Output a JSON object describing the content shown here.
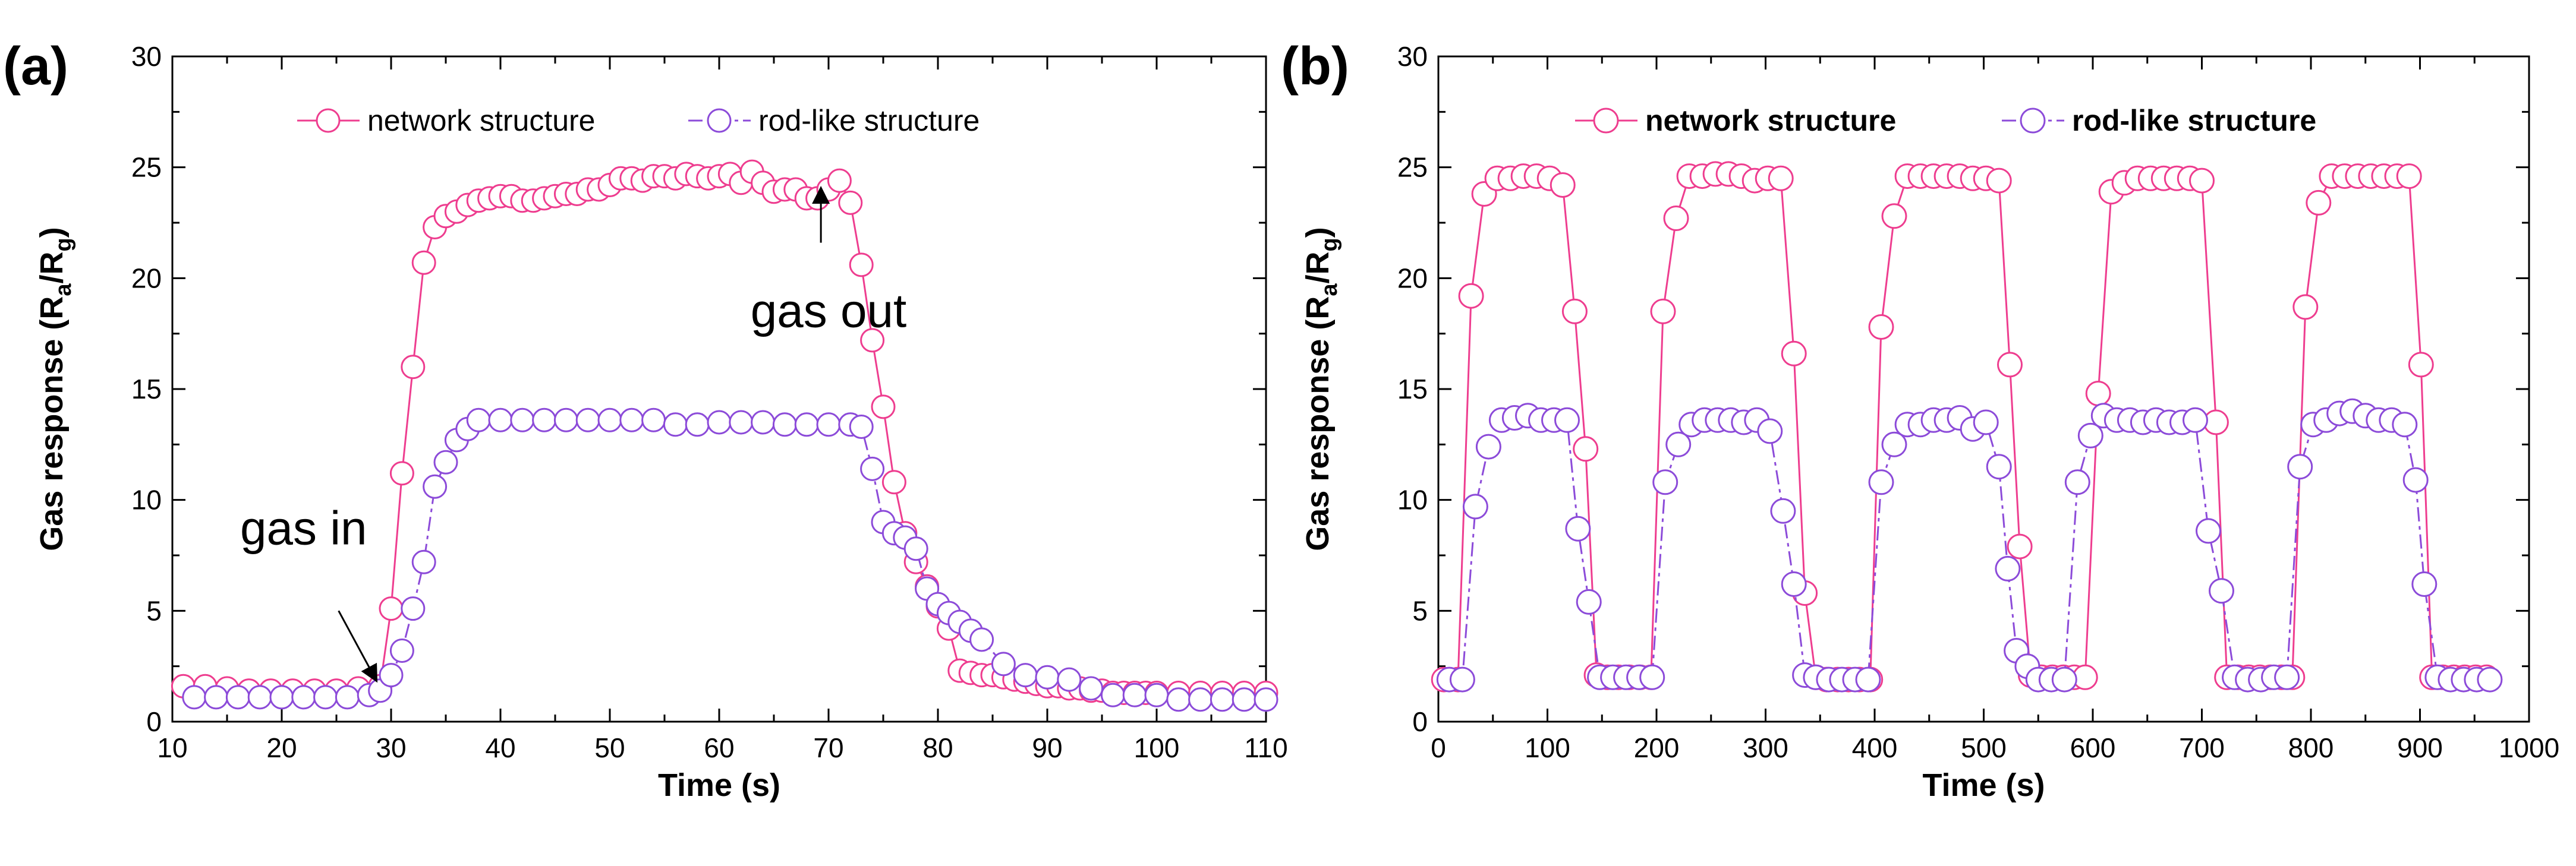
{
  "chart_data": [
    {
      "panel": "(a)",
      "type": "line",
      "title": "",
      "xlabel": "Time (s)",
      "ylabel_main": "Gas response (R",
      "ylabel_sub1": "a",
      "ylabel_mid": "/R",
      "ylabel_sub2": "g",
      "ylabel_end": ")",
      "xlim": [
        10,
        110
      ],
      "ylim": [
        0,
        30
      ],
      "xticks": [
        10,
        20,
        30,
        40,
        50,
        60,
        70,
        80,
        90,
        100,
        110
      ],
      "yticks": [
        0,
        5,
        10,
        15,
        20,
        25,
        30
      ],
      "legend_position": "top-center",
      "legend_bold": false,
      "series": [
        {
          "name": "network structure",
          "color": "#ee3d8f",
          "x": [
            11,
            13,
            15,
            17,
            19,
            21,
            23,
            25,
            27,
            29,
            30,
            31,
            32,
            33,
            34,
            35,
            36,
            37,
            38,
            39,
            40,
            41,
            42,
            43,
            44,
            45,
            46,
            47,
            48,
            49,
            50,
            51,
            52,
            53,
            54,
            55,
            56,
            57,
            58,
            59,
            60,
            61,
            62,
            63,
            64,
            65,
            66,
            67,
            68,
            69,
            70,
            71,
            72,
            73,
            74,
            75,
            76,
            77,
            78,
            79,
            80,
            81,
            82,
            83,
            84,
            85,
            86,
            87,
            88,
            89,
            90,
            91,
            92,
            93,
            94,
            95,
            96,
            97,
            98,
            99,
            100,
            102,
            104,
            106,
            108,
            110
          ],
          "y": [
            1.6,
            1.6,
            1.5,
            1.4,
            1.4,
            1.4,
            1.4,
            1.4,
            1.5,
            1.6,
            5.1,
            11.2,
            16.0,
            20.7,
            22.3,
            22.8,
            23.0,
            23.3,
            23.5,
            23.6,
            23.7,
            23.7,
            23.5,
            23.5,
            23.6,
            23.7,
            23.8,
            23.8,
            24.0,
            24.0,
            24.2,
            24.5,
            24.5,
            24.4,
            24.6,
            24.6,
            24.5,
            24.7,
            24.6,
            24.5,
            24.6,
            24.7,
            24.3,
            24.8,
            24.3,
            23.9,
            24.0,
            24.0,
            23.6,
            23.6,
            24.0,
            24.4,
            23.4,
            20.6,
            17.2,
            14.2,
            10.8,
            8.5,
            7.2,
            6.1,
            5.2,
            4.2,
            2.3,
            2.2,
            2.1,
            2.1,
            2.0,
            1.9,
            1.8,
            1.7,
            1.6,
            1.6,
            1.5,
            1.5,
            1.4,
            1.4,
            1.3,
            1.3,
            1.3,
            1.3,
            1.3,
            1.3,
            1.3,
            1.3,
            1.3,
            1.3
          ]
        },
        {
          "name": "rod-like structure",
          "color": "#8c4bd9",
          "x": [
            12,
            14,
            16,
            18,
            20,
            22,
            24,
            26,
            28,
            29,
            30,
            31,
            32,
            33,
            34,
            35,
            36,
            37,
            38,
            40,
            42,
            44,
            46,
            48,
            50,
            52,
            54,
            56,
            58,
            60,
            62,
            64,
            66,
            68,
            70,
            72,
            73,
            74,
            75,
            76,
            77,
            78,
            79,
            80,
            81,
            82,
            83,
            84,
            86,
            88,
            90,
            92,
            94,
            96,
            98,
            100,
            102,
            104,
            106,
            108,
            110
          ],
          "y": [
            1.1,
            1.1,
            1.1,
            1.1,
            1.1,
            1.1,
            1.1,
            1.1,
            1.2,
            1.4,
            2.1,
            3.2,
            5.1,
            7.2,
            10.6,
            11.7,
            12.7,
            13.2,
            13.6,
            13.6,
            13.6,
            13.6,
            13.6,
            13.6,
            13.6,
            13.6,
            13.6,
            13.4,
            13.4,
            13.5,
            13.5,
            13.5,
            13.4,
            13.4,
            13.4,
            13.4,
            13.3,
            11.4,
            9.0,
            8.5,
            8.3,
            7.8,
            6.0,
            5.3,
            4.9,
            4.5,
            4.1,
            3.7,
            2.6,
            2.1,
            2.0,
            1.9,
            1.5,
            1.2,
            1.2,
            1.2,
            1.0,
            1.0,
            1.0,
            1.0,
            1.0
          ]
        }
      ],
      "annotations": [
        {
          "text": "gas in",
          "x": 22,
          "y": 8.0,
          "arrow_from": [
            25.2,
            5.0
          ],
          "arrow_to": [
            28.6,
            1.9
          ]
        },
        {
          "text": "gas out",
          "x": 70,
          "y": 17.8,
          "arrow_from": [
            69.3,
            21.6
          ],
          "arrow_to": [
            69.3,
            24.0
          ]
        }
      ]
    },
    {
      "panel": "(b)",
      "type": "line",
      "title": "",
      "xlabel": "Time (s)",
      "ylabel_main": "Gas response (R",
      "ylabel_sub1": "a",
      "ylabel_mid": "/R",
      "ylabel_sub2": "g",
      "ylabel_end": ")",
      "xlim": [
        0,
        1000
      ],
      "ylim": [
        0,
        30
      ],
      "xticks": [
        0,
        100,
        200,
        300,
        400,
        500,
        600,
        700,
        800,
        900,
        1000
      ],
      "yticks": [
        0,
        5,
        10,
        15,
        20,
        25,
        30
      ],
      "legend_position": "top-center",
      "legend_bold": true,
      "series": [
        {
          "name": "network structure",
          "color": "#ee3d8f",
          "x": [
            5,
            18,
            30,
            42,
            54,
            66,
            78,
            90,
            102,
            114,
            125,
            135,
            145,
            155,
            165,
            175,
            185,
            195,
            206,
            218,
            230,
            242,
            254,
            266,
            278,
            290,
            302,
            314,
            326,
            336,
            346,
            356,
            366,
            376,
            386,
            396,
            406,
            418,
            430,
            442,
            454,
            466,
            478,
            490,
            502,
            514,
            524,
            533,
            543,
            553,
            563,
            573,
            583,
            593,
            605,
            617,
            629,
            641,
            653,
            665,
            677,
            689,
            700,
            713,
            723,
            733,
            743,
            753,
            763,
            773,
            783,
            795,
            807,
            819,
            831,
            843,
            855,
            867,
            879,
            890,
            901,
            911,
            921,
            931,
            941,
            951,
            961
          ],
          "y": [
            1.9,
            1.9,
            19.2,
            23.8,
            24.5,
            24.5,
            24.6,
            24.6,
            24.5,
            24.2,
            18.5,
            12.3,
            2.1,
            2.0,
            2.0,
            2.0,
            2.0,
            2.0,
            18.5,
            22.7,
            24.6,
            24.6,
            24.7,
            24.7,
            24.6,
            24.4,
            24.5,
            24.5,
            16.6,
            5.8,
            2.0,
            1.9,
            1.9,
            1.9,
            1.9,
            1.9,
            17.8,
            22.8,
            24.6,
            24.6,
            24.6,
            24.6,
            24.6,
            24.5,
            24.5,
            24.4,
            16.1,
            7.9,
            2.1,
            2.0,
            2.0,
            2.0,
            2.0,
            2.0,
            14.8,
            23.9,
            24.3,
            24.5,
            24.5,
            24.5,
            24.5,
            24.5,
            24.4,
            13.5,
            2.0,
            2.0,
            2.0,
            2.0,
            2.0,
            2.0,
            2.0,
            18.7,
            23.4,
            24.6,
            24.6,
            24.6,
            24.6,
            24.6,
            24.6,
            24.6,
            16.1,
            2.0,
            2.0,
            2.0,
            2.0,
            2.0,
            2.0
          ]
        },
        {
          "name": "rod-like structure",
          "color": "#8c4bd9",
          "x": [
            10,
            22,
            34,
            46,
            58,
            70,
            82,
            94,
            106,
            118,
            128,
            138,
            148,
            160,
            172,
            184,
            196,
            208,
            220,
            232,
            244,
            256,
            268,
            280,
            292,
            304,
            316,
            326,
            336,
            346,
            358,
            370,
            382,
            394,
            406,
            418,
            430,
            442,
            454,
            466,
            478,
            490,
            502,
            514,
            522,
            530,
            540,
            550,
            562,
            574,
            586,
            598,
            610,
            622,
            634,
            646,
            658,
            670,
            682,
            694,
            706,
            718,
            730,
            742,
            754,
            766,
            778,
            790,
            802,
            814,
            826,
            838,
            850,
            862,
            874,
            886,
            896,
            904,
            916,
            928,
            940,
            952,
            964
          ],
          "y": [
            1.9,
            1.9,
            9.7,
            12.4,
            13.6,
            13.7,
            13.8,
            13.6,
            13.6,
            13.6,
            8.7,
            5.4,
            2.0,
            2.0,
            2.0,
            2.0,
            2.0,
            10.8,
            12.5,
            13.4,
            13.6,
            13.6,
            13.6,
            13.5,
            13.6,
            13.1,
            9.5,
            6.2,
            2.1,
            2.0,
            1.9,
            1.9,
            1.9,
            1.9,
            10.8,
            12.5,
            13.4,
            13.4,
            13.6,
            13.6,
            13.7,
            13.2,
            13.5,
            11.5,
            6.9,
            3.2,
            2.5,
            1.9,
            1.9,
            1.9,
            10.8,
            12.9,
            13.8,
            13.6,
            13.6,
            13.5,
            13.6,
            13.5,
            13.5,
            13.6,
            8.6,
            5.9,
            2.0,
            1.9,
            1.9,
            2.0,
            2.0,
            11.5,
            13.4,
            13.6,
            13.9,
            14.0,
            13.8,
            13.6,
            13.6,
            13.4,
            10.9,
            6.2,
            2.0,
            1.9,
            1.9,
            1.9,
            1.9
          ]
        }
      ],
      "annotations": []
    }
  ]
}
